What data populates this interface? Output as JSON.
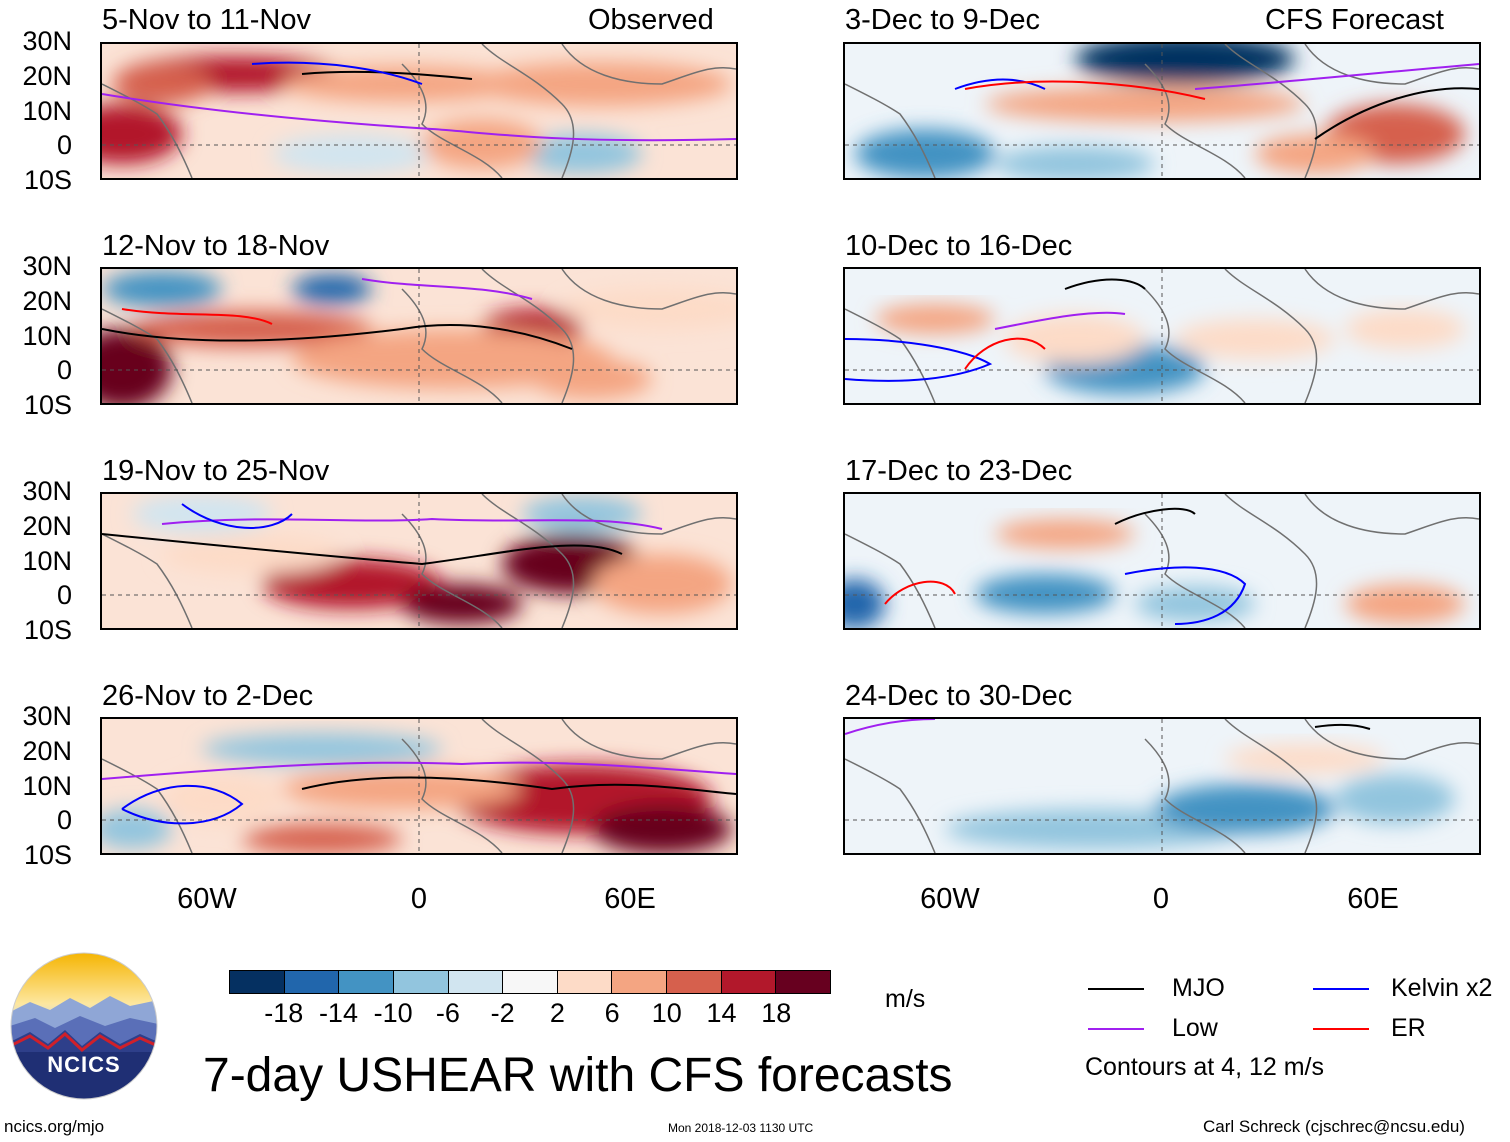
{
  "title": "7-day USHEAR with CFS forecasts",
  "observed_label": "Observed",
  "forecast_label": "CFS Forecast",
  "panels_left": [
    {
      "title": "5-Nov to 11-Nov"
    },
    {
      "title": "12-Nov to 18-Nov"
    },
    {
      "title": "19-Nov to 25-Nov"
    },
    {
      "title": "26-Nov to 2-Dec"
    }
  ],
  "panels_right": [
    {
      "title": "3-Dec to 9-Dec"
    },
    {
      "title": "10-Dec to 16-Dec"
    },
    {
      "title": "17-Dec to 23-Dec"
    },
    {
      "title": "24-Dec to 30-Dec"
    }
  ],
  "lat_labels": [
    "30N",
    "20N",
    "10N",
    "0",
    "10S"
  ],
  "lon_labels": [
    "60W",
    "0",
    "60E"
  ],
  "colorbar": {
    "labels": [
      "-18",
      "-14",
      "-10",
      "-6",
      "-2",
      "2",
      "6",
      "10",
      "14",
      "18"
    ],
    "colors": [
      "#053061",
      "#2166ac",
      "#4393c3",
      "#92c5de",
      "#d1e5f0",
      "#f7f7f7",
      "#fddbc7",
      "#f4a582",
      "#d6604d",
      "#b2182b",
      "#67001f"
    ],
    "units": "m/s"
  },
  "legend": {
    "items": [
      {
        "label": "MJO",
        "color": "#000000"
      },
      {
        "label": "Kelvin x2",
        "color": "#0000ff"
      },
      {
        "label": "Low",
        "color": "#a020f0"
      },
      {
        "label": "ER",
        "color": "#ff0000"
      }
    ],
    "note": "Contours at 4, 12 m/s"
  },
  "logo": {
    "text": "NCICS"
  },
  "footer": {
    "url": "ncics.org/mjo",
    "timestamp": "Mon 2018-12-03 1130 UTC",
    "credit": "Carl Schreck (cjschrec@ncsu.edu)"
  }
}
